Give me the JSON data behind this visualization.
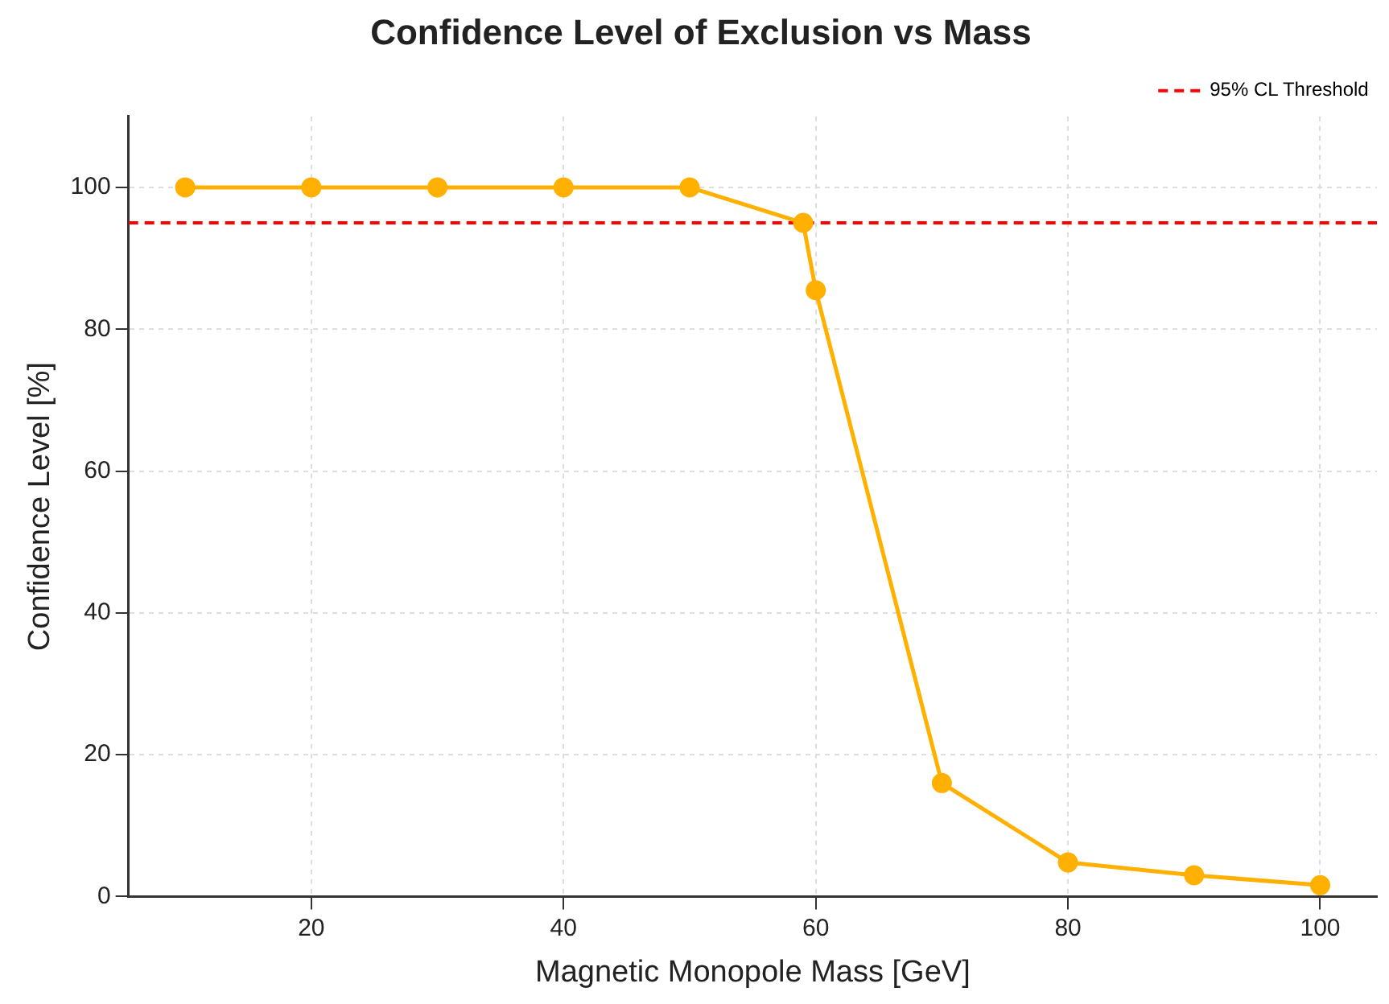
{
  "chart_data": {
    "type": "line",
    "title": "Confidence Level of Exclusion vs Mass",
    "xlabel": "Magnetic Monopole Mass [GeV]",
    "ylabel": "Confidence Level [%]",
    "x": [
      10,
      20,
      30,
      40,
      50,
      59,
      60,
      70,
      80,
      90,
      100
    ],
    "series": [
      {
        "color": "#ffb000",
        "values": [
          100,
          100,
          100,
          100,
          100,
          95,
          85.5,
          16,
          4.8,
          3,
          1.6
        ]
      }
    ],
    "xlim": [
      5.5,
      104.5
    ],
    "xticks": [
      20,
      40,
      60,
      80,
      100
    ],
    "ylim": [
      0,
      110
    ],
    "yticks": [
      0,
      20,
      40,
      60,
      80,
      100
    ],
    "ref_lines": [
      {
        "axis": "y",
        "value": 95,
        "label": "95% CL Threshold",
        "color": "#ff0000",
        "line_style": "dashed"
      }
    ],
    "grid": true,
    "legend": "top right",
    "marker": "circle",
    "line_style": "solid"
  }
}
